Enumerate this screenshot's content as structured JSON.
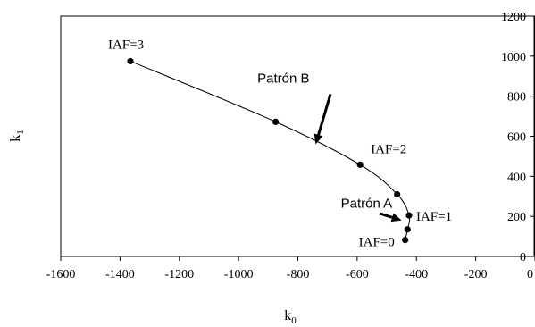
{
  "chart_data": {
    "type": "scatter",
    "title": "",
    "xlabel": "k",
    "xlabel_sub": "0",
    "ylabel": "k",
    "ylabel_sub": "1",
    "xlim": [
      -1600,
      0
    ],
    "ylim": [
      0,
      1200
    ],
    "x_ticks": [
      -1600,
      -1400,
      -1200,
      -1000,
      -800,
      -600,
      -400,
      -200,
      0
    ],
    "y_ticks": [
      0,
      200,
      400,
      600,
      800,
      1000,
      1200
    ],
    "x_tick_labels": [
      "-1600",
      "-1400",
      "-1200",
      "-1000",
      "-800",
      "-600",
      "-400",
      "-200",
      "0"
    ],
    "y_tick_labels": [
      "0",
      "200",
      "400",
      "600",
      "800",
      "1000",
      "1200"
    ],
    "grid": false,
    "legend": "none",
    "y_axis_position": "right",
    "series": [
      {
        "points": [
          {
            "x": -438,
            "y": 82
          },
          {
            "x": -430,
            "y": 135
          },
          {
            "x": -425,
            "y": 205
          },
          {
            "x": -465,
            "y": 310
          },
          {
            "x": -590,
            "y": 458
          },
          {
            "x": -875,
            "y": 672
          },
          {
            "x": -1365,
            "y": 975
          }
        ]
      }
    ],
    "annotations": [
      {
        "text": "IAF=0",
        "x": -438,
        "y": 82
      },
      {
        "text": "IAF=1",
        "x": -425,
        "y": 205
      },
      {
        "text": "IAF=2",
        "x": -590,
        "y": 458
      },
      {
        "text": "IAF=3",
        "x": -1365,
        "y": 975
      },
      {
        "text": "Patrón A",
        "x": -640,
        "y": 265
      },
      {
        "text": "Patrón B",
        "x": -810,
        "y": 890
      }
    ],
    "arrows": [
      {
        "from": {
          "x": -525,
          "y": 215
        },
        "to": {
          "x": -450,
          "y": 180
        }
      },
      {
        "from": {
          "x": -690,
          "y": 810
        },
        "to": {
          "x": -740,
          "y": 560
        }
      }
    ]
  }
}
